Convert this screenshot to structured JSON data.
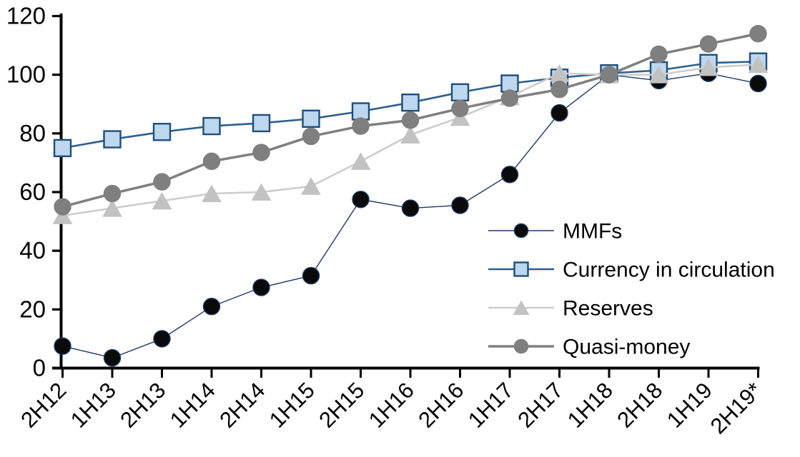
{
  "background": "#ffffff",
  "axis_color": "#000000",
  "chart_data": {
    "type": "line",
    "title": "",
    "xlabel": "",
    "ylabel": "",
    "grid": false,
    "legend_position": "inside-right",
    "ylim": [
      0,
      120
    ],
    "ytick_step": 20,
    "ytick_labels": [
      "0",
      "20",
      "40",
      "60",
      "80",
      "100",
      "120"
    ],
    "categories": [
      "2H12",
      "1H13",
      "2H13",
      "1H14",
      "2H14",
      "1H15",
      "2H15",
      "1H16",
      "2H16",
      "1H17",
      "2H17",
      "1H18",
      "2H18",
      "1H19",
      "2H19*"
    ],
    "series": [
      {
        "name": "MMFs",
        "marker": "circle",
        "marker_fill": "#0a0a0a",
        "marker_stroke": "#1F3864",
        "line_color": "#203864",
        "line_width": 1.4,
        "values": [
          7.5,
          3.5,
          10,
          21,
          27.5,
          31.5,
          57.5,
          54.5,
          55.5,
          66,
          87,
          100,
          98,
          100.5,
          97
        ]
      },
      {
        "name": "Currency in circulation",
        "marker": "square",
        "marker_fill": "#BDD7EE",
        "marker_stroke": "#1F4E79",
        "line_color": "#2E5F8C",
        "line_width": 2.6,
        "values": [
          75,
          78,
          80.5,
          82.5,
          83.5,
          85,
          87.5,
          90.5,
          94,
          97,
          99,
          100.5,
          101.5,
          104,
          104.5
        ]
      },
      {
        "name": "Reserves",
        "marker": "triangle",
        "marker_fill": "#C2C2C2",
        "marker_stroke": "#C2C2C2",
        "line_color": "#CDCDCD",
        "line_width": 2.6,
        "values": [
          52,
          54.5,
          57,
          59.5,
          60,
          62,
          70.5,
          79.5,
          85.5,
          92.5,
          100.5,
          100,
          100,
          102.5,
          103.5
        ]
      },
      {
        "name": "Quasi-money",
        "marker": "circle",
        "marker_fill": "#7F7F7F",
        "marker_stroke": "#7F7F7F",
        "line_color": "#7F7F7F",
        "line_width": 3.5,
        "values": [
          55,
          59.5,
          63.5,
          70.5,
          73.5,
          79,
          82.5,
          84.5,
          88.5,
          92,
          95,
          100,
          107,
          110.5,
          114
        ]
      }
    ]
  }
}
